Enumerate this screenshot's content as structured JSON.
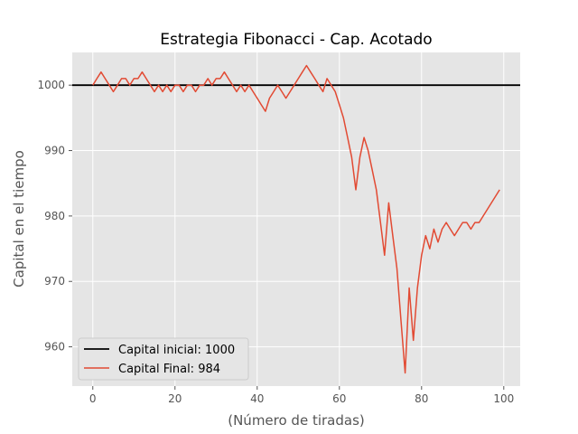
{
  "chart_data": {
    "type": "line",
    "title": "Estrategia Fibonacci - Cap. Acotado",
    "xlabel": "(Número de tiradas)",
    "ylabel": "Capital en el tiempo",
    "xlim": [
      -5,
      104
    ],
    "ylim": [
      954,
      1005
    ],
    "xticks": [
      0,
      20,
      40,
      60,
      80,
      100
    ],
    "yticks": [
      960,
      970,
      980,
      990,
      1000
    ],
    "grid": true,
    "legend_position": "lower-left",
    "colors": {
      "background": "#e5e5e5",
      "grid": "#ffffff",
      "reference": "#000000",
      "series": "#e24a33"
    },
    "reference_line": {
      "name": "Capital inicial: 1000",
      "y": 1000
    },
    "series": [
      {
        "name": "Capital Final: 984",
        "x": [
          0,
          1,
          2,
          3,
          4,
          5,
          6,
          7,
          8,
          9,
          10,
          11,
          12,
          13,
          14,
          15,
          16,
          17,
          18,
          19,
          20,
          21,
          22,
          23,
          24,
          25,
          26,
          27,
          28,
          29,
          30,
          31,
          32,
          33,
          34,
          35,
          36,
          37,
          38,
          39,
          40,
          41,
          42,
          43,
          44,
          45,
          46,
          47,
          48,
          49,
          50,
          51,
          52,
          53,
          54,
          55,
          56,
          57,
          58,
          59,
          60,
          61,
          62,
          63,
          64,
          65,
          66,
          67,
          68,
          69,
          70,
          71,
          72,
          73,
          74,
          75,
          76,
          77,
          78,
          79,
          80,
          81,
          82,
          83,
          84,
          85,
          86,
          87,
          88,
          89,
          90,
          91,
          92,
          93,
          94,
          99
        ],
        "values": [
          1000,
          1001,
          1002,
          1001,
          1000,
          999,
          1000,
          1001,
          1001,
          1000,
          1001,
          1001,
          1002,
          1001,
          1000,
          999,
          1000,
          999,
          1000,
          999,
          1000,
          1000,
          999,
          1000,
          1000,
          999,
          1000,
          1000,
          1001,
          1000,
          1001,
          1001,
          1002,
          1001,
          1000,
          999,
          1000,
          999,
          1000,
          999,
          998,
          997,
          996,
          998,
          999,
          1000,
          999,
          998,
          999,
          1000,
          1001,
          1002,
          1003,
          1002,
          1001,
          1000,
          999,
          1001,
          1000,
          999,
          997,
          995,
          992,
          989,
          984,
          989,
          992,
          990,
          987,
          984,
          979,
          974,
          982,
          977,
          972,
          964,
          956,
          969,
          961,
          969,
          974,
          977,
          975,
          978,
          976,
          978,
          979,
          978,
          977,
          978,
          979,
          979,
          978,
          979,
          979,
          984
        ]
      }
    ]
  }
}
